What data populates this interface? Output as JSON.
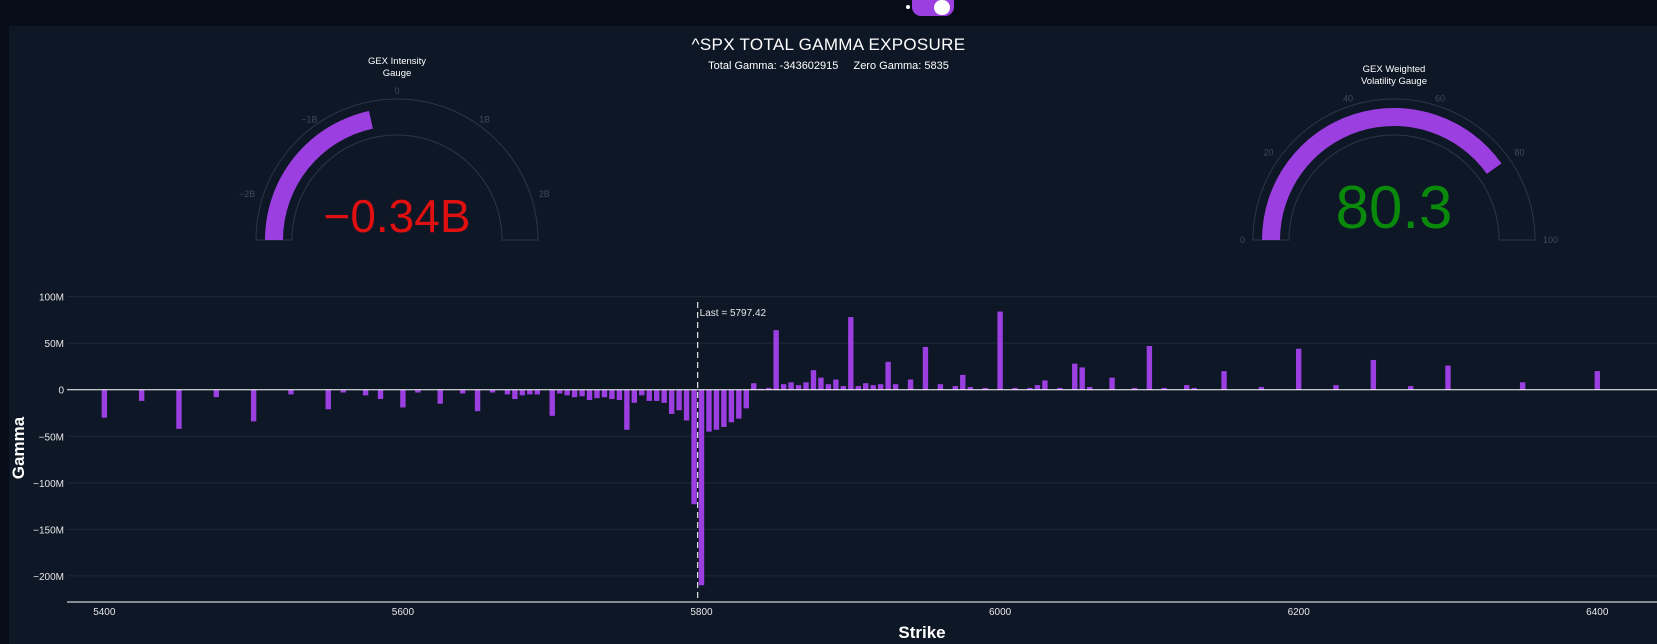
{
  "header": {
    "title": "^SPX TOTAL GAMMA EXPOSURE",
    "total_gamma_label": "Total Gamma: -343602915",
    "zero_gamma_label": "Zero Gamma: 5835"
  },
  "colors": {
    "background": "#0e1726",
    "bar": "#9b3fe0",
    "gauge_bar": "#9b3fe0",
    "negative_value": "#e01010",
    "positive_value": "#0a8a0a"
  },
  "gauges": [
    {
      "title_lines": [
        "GEX Intensity",
        "Gauge"
      ],
      "value_text": "−0.34B",
      "value": -0.34,
      "min": -2.5,
      "max": 2.5,
      "bar_from": -2.5,
      "ticks": [
        {
          "v": -2,
          "label": "−2B"
        },
        {
          "v": -1,
          "label": "−1B"
        },
        {
          "v": 0,
          "label": "0"
        },
        {
          "v": 1,
          "label": "1B"
        },
        {
          "v": 2,
          "label": "2B"
        }
      ]
    },
    {
      "title_lines": [
        "GEX Weighted",
        "Volatility Gauge"
      ],
      "value_text": "80.3",
      "value": 80.3,
      "min": 0,
      "max": 100,
      "bar_from": 0,
      "ticks": [
        {
          "v": 0,
          "label": "0"
        },
        {
          "v": 20,
          "label": "20"
        },
        {
          "v": 40,
          "label": "40"
        },
        {
          "v": 60,
          "label": "60"
        },
        {
          "v": 80,
          "label": "80"
        },
        {
          "v": 100,
          "label": "100"
        }
      ]
    }
  ],
  "chart_data": {
    "type": "bar",
    "xlabel": "Strike",
    "ylabel": "Gamma",
    "xlim": [
      5375,
      6440
    ],
    "ylim": [
      -228,
      105
    ],
    "x_ticks": [
      {
        "v": 5400,
        "label": "5400"
      },
      {
        "v": 5600,
        "label": "5600"
      },
      {
        "v": 5800,
        "label": "5800"
      },
      {
        "v": 6000,
        "label": "6000"
      },
      {
        "v": 6200,
        "label": "6200"
      },
      {
        "v": 6400,
        "label": "6400"
      }
    ],
    "y_ticks": [
      {
        "v": 100,
        "label": "100M"
      },
      {
        "v": 50,
        "label": "50M"
      },
      {
        "v": 0,
        "label": "0"
      },
      {
        "v": -50,
        "label": "−50M"
      },
      {
        "v": -100,
        "label": "−100M"
      },
      {
        "v": -150,
        "label": "−150M"
      },
      {
        "v": -200,
        "label": "−200M"
      }
    ],
    "annotation": {
      "x": 5797.42,
      "label": "Last = 5797.42"
    },
    "bars": [
      {
        "x": 5400,
        "y": -30
      },
      {
        "x": 5425,
        "y": -12
      },
      {
        "x": 5450,
        "y": -42
      },
      {
        "x": 5475,
        "y": -8
      },
      {
        "x": 5500,
        "y": -34
      },
      {
        "x": 5525,
        "y": -5
      },
      {
        "x": 5550,
        "y": -21
      },
      {
        "x": 5560,
        "y": -3
      },
      {
        "x": 5575,
        "y": -6
      },
      {
        "x": 5585,
        "y": -10
      },
      {
        "x": 5600,
        "y": -19
      },
      {
        "x": 5610,
        "y": -3
      },
      {
        "x": 5625,
        "y": -15
      },
      {
        "x": 5640,
        "y": -4
      },
      {
        "x": 5650,
        "y": -23
      },
      {
        "x": 5660,
        "y": -3
      },
      {
        "x": 5670,
        "y": -5
      },
      {
        "x": 5675,
        "y": -10
      },
      {
        "x": 5680,
        "y": -6
      },
      {
        "x": 5685,
        "y": -5
      },
      {
        "x": 5690,
        "y": -5
      },
      {
        "x": 5700,
        "y": -28
      },
      {
        "x": 5705,
        "y": -4
      },
      {
        "x": 5710,
        "y": -6
      },
      {
        "x": 5715,
        "y": -8
      },
      {
        "x": 5720,
        "y": -7
      },
      {
        "x": 5725,
        "y": -11
      },
      {
        "x": 5730,
        "y": -9
      },
      {
        "x": 5735,
        "y": -8
      },
      {
        "x": 5740,
        "y": -10
      },
      {
        "x": 5745,
        "y": -11
      },
      {
        "x": 5750,
        "y": -43
      },
      {
        "x": 5755,
        "y": -14
      },
      {
        "x": 5760,
        "y": -6
      },
      {
        "x": 5765,
        "y": -12
      },
      {
        "x": 5770,
        "y": -12
      },
      {
        "x": 5775,
        "y": -14
      },
      {
        "x": 5780,
        "y": -26
      },
      {
        "x": 5785,
        "y": -22
      },
      {
        "x": 5790,
        "y": -33
      },
      {
        "x": 5795,
        "y": -123
      },
      {
        "x": 5800,
        "y": -210
      },
      {
        "x": 5805,
        "y": -45
      },
      {
        "x": 5810,
        "y": -43
      },
      {
        "x": 5815,
        "y": -40
      },
      {
        "x": 5820,
        "y": -35
      },
      {
        "x": 5825,
        "y": -31
      },
      {
        "x": 5830,
        "y": -20
      },
      {
        "x": 5835,
        "y": 7
      },
      {
        "x": 5840,
        "y": 1
      },
      {
        "x": 5845,
        "y": 2
      },
      {
        "x": 5850,
        "y": 64
      },
      {
        "x": 5855,
        "y": 6
      },
      {
        "x": 5860,
        "y": 8
      },
      {
        "x": 5865,
        "y": 5
      },
      {
        "x": 5870,
        "y": 8
      },
      {
        "x": 5875,
        "y": 21
      },
      {
        "x": 5880,
        "y": 13
      },
      {
        "x": 5885,
        "y": 6
      },
      {
        "x": 5890,
        "y": 11
      },
      {
        "x": 5895,
        "y": 4
      },
      {
        "x": 5900,
        "y": 78
      },
      {
        "x": 5905,
        "y": 4
      },
      {
        "x": 5910,
        "y": 7
      },
      {
        "x": 5915,
        "y": 5
      },
      {
        "x": 5920,
        "y": 6
      },
      {
        "x": 5925,
        "y": 30
      },
      {
        "x": 5930,
        "y": 6
      },
      {
        "x": 5940,
        "y": 11
      },
      {
        "x": 5950,
        "y": 46
      },
      {
        "x": 5960,
        "y": 6
      },
      {
        "x": 5970,
        "y": 4
      },
      {
        "x": 5975,
        "y": 16
      },
      {
        "x": 5980,
        "y": 3
      },
      {
        "x": 5990,
        "y": 2
      },
      {
        "x": 6000,
        "y": 84
      },
      {
        "x": 6010,
        "y": 2
      },
      {
        "x": 6020,
        "y": 2
      },
      {
        "x": 6025,
        "y": 5
      },
      {
        "x": 6030,
        "y": 10
      },
      {
        "x": 6040,
        "y": 2
      },
      {
        "x": 6050,
        "y": 28
      },
      {
        "x": 6055,
        "y": 24
      },
      {
        "x": 6060,
        "y": 3
      },
      {
        "x": 6075,
        "y": 13
      },
      {
        "x": 6090,
        "y": 2
      },
      {
        "x": 6100,
        "y": 47
      },
      {
        "x": 6110,
        "y": 2
      },
      {
        "x": 6125,
        "y": 5
      },
      {
        "x": 6130,
        "y": 2
      },
      {
        "x": 6150,
        "y": 20
      },
      {
        "x": 6175,
        "y": 3
      },
      {
        "x": 6200,
        "y": 44
      },
      {
        "x": 6225,
        "y": 5
      },
      {
        "x": 6250,
        "y": 32
      },
      {
        "x": 6275,
        "y": 4
      },
      {
        "x": 6300,
        "y": 26
      },
      {
        "x": 6350,
        "y": 8
      },
      {
        "x": 6400,
        "y": 20
      }
    ]
  }
}
